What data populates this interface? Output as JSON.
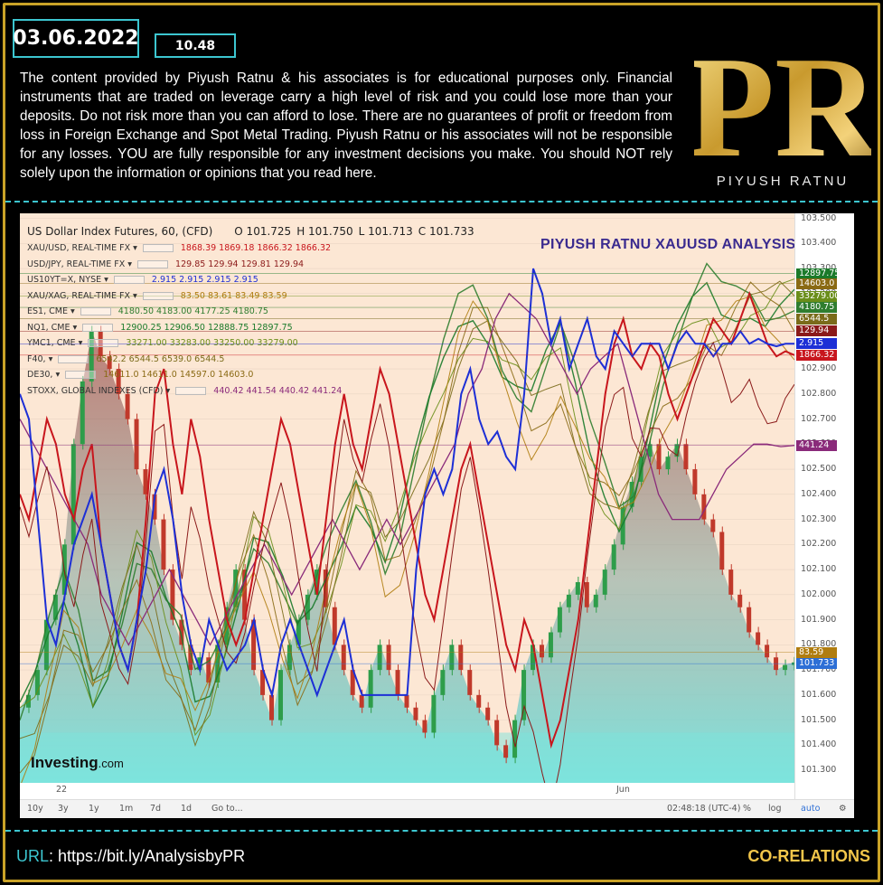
{
  "header": {
    "date": "03.06.2022",
    "time": "10.48",
    "disclaimer": "The content provided by Piyush Ratnu & his associates is for educational purposes only. Financial instruments that are traded on leverage carry a high level of risk and you could lose more than your deposits. Do not risk more than you can afford to lose. There are no guarantees of profit or freedom from loss in Foreign Exchange and Spot Metal Trading. Piyush Ratnu or his associates will not be responsible for any losses. YOU are fully responsible for any investment decisions you make. You should NOT rely solely upon the information or opinions that you read here.",
    "logo_letters": "PR",
    "logo_name": "PIYUSH RATNU"
  },
  "chart_data": {
    "type": "line",
    "title": "PIYUSH RATNU XAUUSD ANALYSIS",
    "main_series": {
      "name": "US Dollar Index Futures, 60, (CFD)",
      "open": "O 101.725",
      "high": "H 101.750",
      "low": "L 101.713",
      "close": "C 101.733"
    },
    "legend": [
      {
        "name": "XAU/USD, REAL-TIME FX",
        "values": "1868.39  1869.18  1866.32  1866.32",
        "color": "#c8161d"
      },
      {
        "name": "USD/JPY, REAL-TIME FX",
        "values": "129.85  129.94  129.81  129.94",
        "color": "#8b1a1a"
      },
      {
        "name": "US10YT=X, NYSE",
        "values": "2.915  2.915  2.915  2.915",
        "color": "#1d2fd6"
      },
      {
        "name": "XAU/XAG, REAL-TIME FX",
        "values": "83.50  83.61  83.49  83.59",
        "color": "#b07d10"
      },
      {
        "name": "ES1, CME",
        "values": "4180.50  4183.00  4177.25  4180.75",
        "color": "#2f7d2f"
      },
      {
        "name": "NQ1, CME",
        "values": "12900.25  12906.50  12888.75  12897.75",
        "color": "#1a7a2a"
      },
      {
        "name": "YMC1, CME",
        "values": "33271.00  33283.00  33250.00  33279.00",
        "color": "#6a8e1a"
      },
      {
        "name": "F40,",
        "values": "6542.2  6544.5  6539.0  6544.5",
        "color": "#7a6b1a"
      },
      {
        "name": "DE30,",
        "values": "14611.0  14611.0  14597.0  14603.0",
        "color": "#8a6a14"
      },
      {
        "name": "STOXX, GLOBAL INDEXES (CFD)",
        "values": "440.42  441.54  440.42  441.24",
        "color": "#8a2a7a"
      }
    ],
    "y_ticks": [
      "103.500",
      "103.400",
      "103.300",
      "103.200",
      "103.100",
      "103.000",
      "102.900",
      "102.800",
      "102.700",
      "102.600",
      "102.500",
      "102.400",
      "102.300",
      "102.200",
      "102.100",
      "102.000",
      "101.900",
      "101.800",
      "101.700",
      "101.600",
      "101.500",
      "101.400",
      "101.300"
    ],
    "ylim": [
      101.25,
      103.52
    ],
    "price_tags": [
      {
        "label": "12897.75",
        "value": 103.28,
        "color": "#1a7a2a"
      },
      {
        "label": "14603.0",
        "value": 103.24,
        "color": "#8a6a14"
      },
      {
        "label": "33279.00",
        "value": 103.19,
        "color": "#6a8e1a"
      },
      {
        "label": "4180.75",
        "value": 103.145,
        "color": "#2f7d2f"
      },
      {
        "label": "6544.5",
        "value": 103.1,
        "color": "#7a6b1a"
      },
      {
        "label": "129.94",
        "value": 103.05,
        "color": "#8b1a1a"
      },
      {
        "label": "2.915",
        "value": 103.0,
        "color": "#1d2fd6"
      },
      {
        "label": "1866.32",
        "value": 102.955,
        "color": "#c8161d"
      },
      {
        "label": "441.24",
        "value": 102.595,
        "color": "#8a2a7a"
      },
      {
        "label": "83.59",
        "value": 101.77,
        "color": "#b07d10"
      },
      {
        "label": "101.733",
        "value": 101.725,
        "color": "#2d6fd6"
      }
    ],
    "x_labels": [
      "22",
      "Jun"
    ],
    "dxy_close": [
      101.55,
      101.6,
      101.7,
      101.9,
      102.0,
      102.2,
      102.6,
      102.85,
      103.05,
      102.95,
      102.9,
      102.8,
      102.7,
      102.5,
      102.4,
      102.3,
      102.1,
      101.9,
      101.8,
      101.7,
      101.75,
      101.65,
      101.8,
      101.95,
      102.1,
      101.9,
      101.7,
      101.6,
      101.5,
      101.7,
      101.8,
      101.9,
      102.0,
      102.1,
      101.95,
      101.8,
      101.7,
      101.6,
      101.55,
      101.7,
      101.8,
      101.7,
      101.6,
      101.55,
      101.5,
      101.45,
      101.6,
      101.7,
      101.8,
      101.7,
      101.6,
      101.55,
      101.5,
      101.4,
      101.35,
      101.5,
      101.7,
      101.8,
      101.75,
      101.85,
      101.95,
      102.0,
      102.05,
      101.95,
      102.0,
      102.1,
      102.2,
      102.35,
      102.45,
      102.55,
      102.6,
      102.5,
      102.55,
      102.6,
      102.5,
      102.4,
      102.3,
      102.25,
      102.1,
      102.0,
      101.95,
      101.85,
      101.8,
      101.75,
      101.7,
      101.72,
      101.73
    ],
    "xau_usd": [
      102.4,
      102.3,
      102.5,
      102.7,
      102.6,
      102.4,
      102.3,
      102.5,
      102.6,
      102.2,
      102.0,
      101.8,
      101.7,
      101.9,
      102.3,
      102.8,
      102.9,
      102.6,
      102.4,
      102.7,
      102.55,
      102.3,
      102.1,
      101.9,
      101.8,
      101.9,
      102.1,
      102.3,
      102.5,
      102.7,
      102.6,
      102.4,
      102.2,
      102.0,
      102.3,
      102.6,
      102.8,
      102.6,
      102.5,
      102.7,
      102.9,
      102.8,
      102.6,
      102.4,
      102.2,
      102.0,
      101.9,
      102.1,
      102.3,
      102.5,
      102.6,
      102.4,
      102.2,
      102.0,
      101.8,
      101.7,
      101.9,
      101.8,
      101.6,
      101.4,
      101.5,
      101.7,
      101.9,
      102.2,
      102.5,
      102.8,
      103.0,
      103.1,
      102.95,
      102.9,
      103.0,
      102.95,
      102.8,
      102.7,
      102.8,
      102.9,
      103.0,
      103.1,
      103.05,
      103.0,
      103.1,
      103.2,
      103.1,
      103.0,
      102.95,
      102.97,
      102.955
    ],
    "us10y": [
      102.8,
      102.7,
      102.3,
      101.9,
      101.8,
      102.0,
      102.2,
      102.3,
      102.4,
      102.2,
      102.0,
      101.8,
      101.7,
      101.9,
      102.1,
      102.4,
      102.5,
      102.3,
      102.0,
      101.8,
      101.7,
      101.9,
      101.8,
      101.7,
      101.75,
      101.8,
      101.9,
      101.7,
      101.6,
      101.8,
      101.9,
      101.8,
      101.7,
      101.6,
      101.7,
      101.8,
      101.9,
      101.7,
      101.6,
      101.6,
      101.6,
      101.6,
      101.6,
      101.6,
      102.1,
      102.4,
      102.5,
      102.4,
      102.5,
      102.8,
      102.9,
      102.7,
      102.6,
      102.65,
      102.55,
      102.5,
      102.8,
      103.3,
      103.2,
      103.0,
      103.1,
      102.9,
      103.0,
      103.1,
      102.95,
      102.9,
      103.05,
      103.0,
      102.95,
      103.0,
      103.0,
      103.0,
      102.9,
      103.0,
      103.05,
      103.0,
      103.0,
      102.95,
      103.0,
      103.0,
      103.05,
      103.0,
      103.02,
      103.0,
      102.99,
      103.0,
      103.0
    ],
    "stoxx": [
      102.7,
      102.6,
      102.5,
      102.4,
      102.3,
      102.2,
      102.0,
      101.9,
      101.8,
      101.9,
      102.0,
      102.1,
      102.0,
      101.9,
      101.8,
      101.9,
      102.0,
      102.1,
      102.2,
      102.1,
      102.0,
      102.1,
      102.2,
      102.3,
      102.2,
      102.1,
      102.2,
      102.3,
      102.2,
      102.3,
      102.4,
      102.5,
      102.6,
      102.8,
      102.9,
      103.1,
      103.2,
      103.15,
      103.1,
      103.0,
      102.9,
      102.8,
      102.9,
      102.95,
      103.0,
      102.8,
      102.6,
      102.4,
      102.3,
      102.3,
      102.3,
      102.4,
      102.5,
      102.55,
      102.6,
      102.6,
      102.59,
      102.595
    ],
    "indices_base": [
      101.5,
      101.6,
      101.8,
      102.0,
      101.9,
      101.7,
      101.8,
      102.0,
      102.2,
      102.1,
      101.9,
      101.8,
      101.6,
      101.7,
      101.9,
      102.1,
      102.3,
      102.2,
      102.0,
      101.8,
      101.9,
      102.1,
      102.3,
      102.5,
      102.4,
      102.2,
      102.3,
      102.5,
      102.7,
      102.9,
      103.1,
      103.2,
      103.15,
      103.0,
      102.9,
      102.8,
      102.9,
      103.0,
      102.8,
      102.6,
      102.5,
      102.4,
      102.5,
      102.7,
      102.9,
      103.0,
      103.1,
      103.2,
      103.15,
      103.2,
      103.25,
      103.2,
      103.22,
      103.2
    ]
  },
  "toolbar": {
    "ranges": [
      "10y",
      "3y",
      "1y",
      "1m",
      "7d",
      "1d",
      "Go to..."
    ],
    "clock": "02:48:18 (UTC-4)",
    "pct": "%",
    "log": "log",
    "auto": "auto"
  },
  "watermark": {
    "brand": "Investing",
    "suffix": ".com"
  },
  "footer": {
    "url_key": "URL",
    "url": ": https://bit.ly/AnalysisbyPR",
    "right": "CO-RELATIONS"
  },
  "colors": {
    "accent": "#3cc6d0",
    "gold": "#c9a227",
    "chart_bg": "#fce7d4"
  }
}
